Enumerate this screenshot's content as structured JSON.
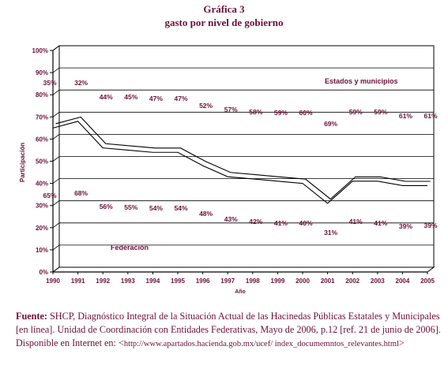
{
  "title_line1": "Gráfica 3",
  "title_line2": "gasto por nivel de gobierno",
  "chart_data": {
    "type": "line",
    "title": "gasto por nivel de gobierno",
    "ylabel": "Participación",
    "xlabel": "Año",
    "ylim": [
      0,
      100
    ],
    "y_ticks": [
      "0%",
      "10%",
      "20%",
      "30%",
      "40%",
      "50%",
      "60%",
      "70%",
      "80%",
      "90%",
      "100%"
    ],
    "x": [
      "1990",
      "1991",
      "1992",
      "1993",
      "1994",
      "1995",
      "1996",
      "1997",
      "1998",
      "1999",
      "2000",
      "2001",
      "2002",
      "2003",
      "2004",
      "2005"
    ],
    "series": [
      {
        "name": "Federación",
        "values": [
          65,
          68,
          56,
          55,
          54,
          54,
          48,
          43,
          42,
          41,
          40,
          31,
          41,
          41,
          39,
          39
        ],
        "labels": [
          "65%",
          "68%",
          "56%",
          "55%",
          "54%",
          "54%",
          "48%",
          "43%",
          "42%",
          "41%",
          "40%",
          "31%",
          "41%",
          "41%",
          "39%",
          "39%"
        ]
      },
      {
        "name": "Estados y municipios",
        "values": [
          35,
          32,
          44,
          45,
          47,
          47,
          52,
          57,
          58,
          59,
          60,
          69,
          59,
          59,
          61,
          61
        ],
        "labels": [
          "35%",
          "32%",
          "44%",
          "45%",
          "47%",
          "47%",
          "52%",
          "57%",
          "58%",
          "59%",
          "60%",
          "69%",
          "59%",
          "59%",
          "61%",
          "61%"
        ]
      }
    ],
    "grid": true,
    "colors": {
      "text": "#6b1038",
      "axis": "#000000",
      "grid": "#000000"
    }
  },
  "source": {
    "label": "Fuente:",
    "text": " SHCP, Diagnóstico Integral de la Situación Actual de las Hacinedas Públicas Estatales y Municipales [en línea]. Unidad de Coordinación con Entidades Federativas, Mayo de 2006, p.12 [ref. 21 de junio de 2006]. Disponible en Internet en: <",
    "url": "http://www.apartados.hacienda.gob.mx/ucef/ index_documemntos_relevantes.html",
    "close": ">"
  }
}
